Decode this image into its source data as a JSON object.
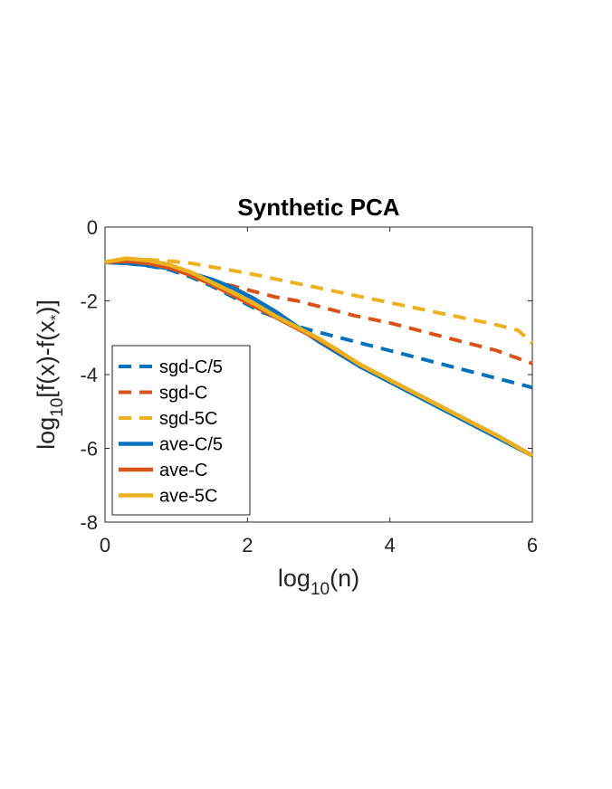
{
  "chart_data": {
    "type": "line",
    "title": "Synthetic PCA",
    "xlabel": {
      "base": "log",
      "sub": "10",
      "rest": "(n)"
    },
    "ylabel": {
      "base": "log",
      "sub": "10",
      "mid": "[f(x)-f(x",
      "sub2": "*",
      "end": ")]"
    },
    "xlim": [
      0,
      6
    ],
    "ylim": [
      -8,
      0
    ],
    "xticks": [
      0,
      2,
      4,
      6
    ],
    "yticks": [
      0,
      -2,
      -4,
      -6,
      -8
    ],
    "xtick_labels": [
      "0",
      "2",
      "4",
      "6"
    ],
    "ytick_labels": [
      "0",
      "-2",
      "-4",
      "-6",
      "-8"
    ],
    "legend_position": "lower-left",
    "series": [
      {
        "name": "sgd-C/5",
        "color": "#0072BD",
        "style": "dashed",
        "x": [
          0,
          0.3,
          0.6,
          0.9,
          1.2,
          1.5,
          1.8,
          2.0,
          2.2,
          2.4,
          2.6,
          2.8,
          3.0,
          3.3,
          3.6,
          4.0,
          4.5,
          5.0,
          5.5,
          6.0
        ],
        "y": [
          -0.95,
          -0.98,
          -1.05,
          -1.15,
          -1.35,
          -1.6,
          -1.9,
          -2.1,
          -2.3,
          -2.45,
          -2.6,
          -2.75,
          -2.85,
          -3.0,
          -3.15,
          -3.35,
          -3.6,
          -3.85,
          -4.1,
          -4.35
        ]
      },
      {
        "name": "sgd-C",
        "color": "#D95319",
        "style": "dashed",
        "x": [
          0,
          0.3,
          0.6,
          0.9,
          1.2,
          1.5,
          1.8,
          2.1,
          2.4,
          2.7,
          3.0,
          3.5,
          4.0,
          4.5,
          5.0,
          5.5,
          6.0
        ],
        "y": [
          -0.95,
          -0.92,
          -0.98,
          -1.08,
          -1.25,
          -1.45,
          -1.6,
          -1.75,
          -1.9,
          -2.0,
          -2.15,
          -2.4,
          -2.6,
          -2.85,
          -3.1,
          -3.35,
          -3.7
        ]
      },
      {
        "name": "sgd-5C",
        "color": "#EDB120",
        "style": "dashed",
        "x": [
          0,
          0.3,
          0.6,
          0.9,
          1.2,
          1.5,
          2.0,
          2.5,
          3.0,
          3.5,
          4.0,
          4.5,
          5.0,
          5.5,
          5.8,
          6.0
        ],
        "y": [
          -0.95,
          -0.88,
          -0.88,
          -0.92,
          -0.98,
          -1.08,
          -1.25,
          -1.45,
          -1.65,
          -1.85,
          -2.05,
          -2.25,
          -2.45,
          -2.65,
          -2.8,
          -3.15
        ]
      },
      {
        "name": "ave-C/5",
        "color": "#0072BD",
        "style": "solid",
        "x": [
          0,
          0.3,
          0.6,
          0.9,
          1.2,
          1.5,
          1.8,
          2.1,
          2.4,
          2.7,
          3.0,
          3.3,
          3.6,
          4.0,
          4.5,
          5.0,
          5.5,
          6.0
        ],
        "y": [
          -0.95,
          -0.98,
          -1.03,
          -1.12,
          -1.25,
          -1.42,
          -1.65,
          -1.95,
          -2.3,
          -2.7,
          -3.1,
          -3.45,
          -3.8,
          -4.2,
          -4.7,
          -5.2,
          -5.7,
          -6.2
        ]
      },
      {
        "name": "ave-C",
        "color": "#D95319",
        "style": "solid",
        "x": [
          0,
          0.3,
          0.6,
          0.9,
          1.2,
          1.5,
          1.8,
          2.1,
          2.4,
          2.7,
          3.0,
          3.3,
          3.6,
          4.0,
          4.5,
          5.0,
          5.5,
          6.0
        ],
        "y": [
          -0.95,
          -0.92,
          -0.98,
          -1.1,
          -1.3,
          -1.55,
          -1.85,
          -2.15,
          -2.45,
          -2.75,
          -3.05,
          -3.4,
          -3.75,
          -4.15,
          -4.65,
          -5.15,
          -5.65,
          -6.2
        ]
      },
      {
        "name": "ave-5C",
        "color": "#EDB120",
        "style": "solid",
        "x": [
          0,
          0.3,
          0.6,
          0.9,
          1.2,
          1.5,
          1.8,
          2.1,
          2.4,
          2.7,
          3.0,
          3.3,
          3.6,
          4.0,
          4.5,
          5.0,
          5.5,
          6.0
        ],
        "y": [
          -0.95,
          -0.85,
          -0.9,
          -1.02,
          -1.22,
          -1.5,
          -1.78,
          -2.08,
          -2.42,
          -2.72,
          -3.02,
          -3.38,
          -3.75,
          -4.15,
          -4.65,
          -5.15,
          -5.65,
          -6.2
        ]
      }
    ]
  }
}
